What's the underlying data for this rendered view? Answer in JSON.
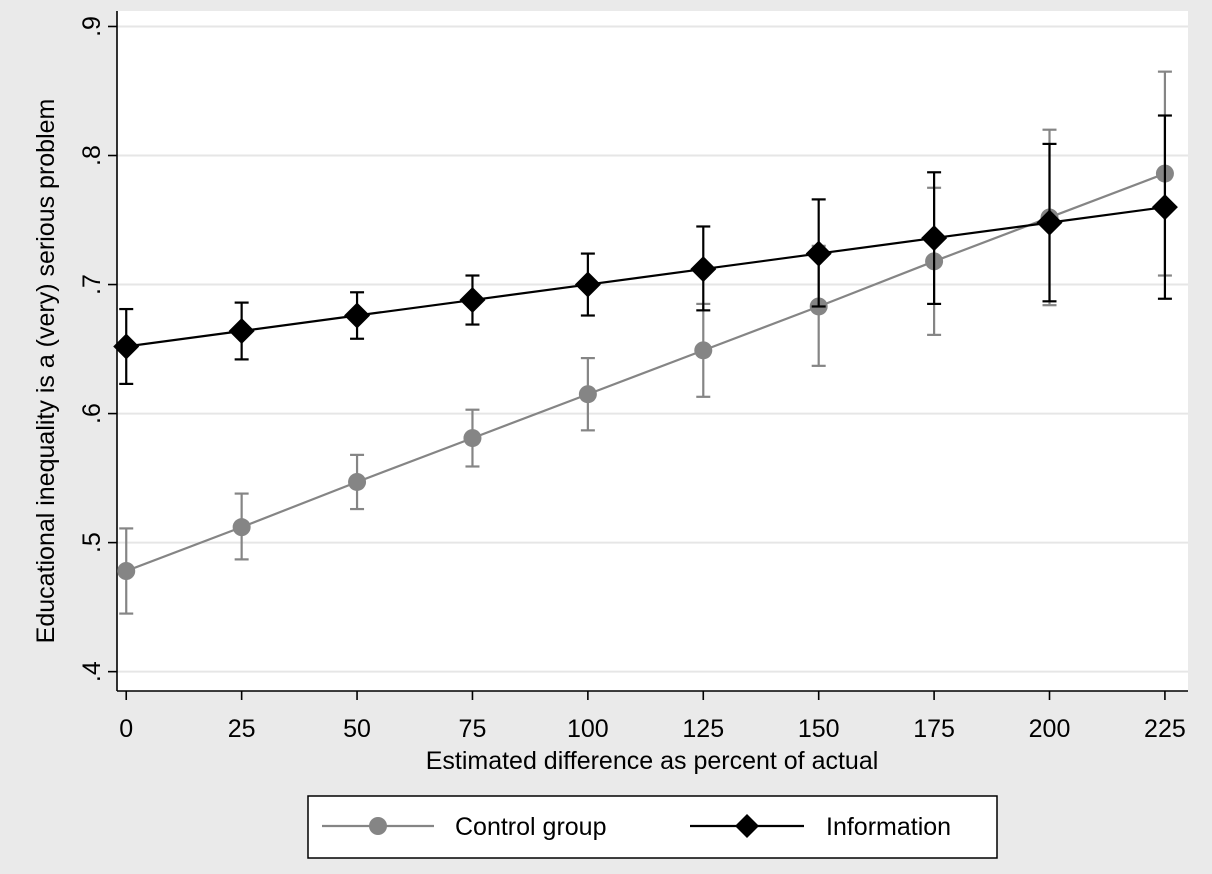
{
  "chart_data": {
    "type": "line",
    "title": "",
    "xlabel": "Estimated difference as percent of actual",
    "ylabel": "Educational inequality is a (very) serious problem",
    "x": [
      0,
      25,
      50,
      75,
      100,
      125,
      150,
      175,
      200,
      225
    ],
    "x_tick_labels": [
      "0",
      "25",
      "50",
      "75",
      "100",
      "125",
      "150",
      "175",
      "200",
      "225"
    ],
    "y_ticks": [
      0.4,
      0.5,
      0.6,
      0.7,
      0.8,
      0.9
    ],
    "y_tick_labels": [
      ".4",
      ".5",
      ".6",
      ".7",
      ".8",
      ".9"
    ],
    "xlim": [
      -2,
      230
    ],
    "ylim": [
      0.385,
      0.912
    ],
    "grid": true,
    "legend_position": "bottom",
    "series": [
      {
        "name": "Control group",
        "marker": "circle",
        "color": "#858585",
        "values": [
          0.478,
          0.512,
          0.547,
          0.581,
          0.615,
          0.649,
          0.683,
          0.718,
          0.752,
          0.786
        ],
        "ci_low": [
          0.445,
          0.487,
          0.526,
          0.559,
          0.587,
          0.613,
          0.637,
          0.661,
          0.684,
          0.707
        ],
        "ci_high": [
          0.511,
          0.538,
          0.568,
          0.603,
          0.643,
          0.685,
          0.73,
          0.775,
          0.82,
          0.865
        ]
      },
      {
        "name": "Information",
        "marker": "diamond",
        "color": "#000000",
        "values": [
          0.652,
          0.664,
          0.676,
          0.688,
          0.7,
          0.712,
          0.724,
          0.736,
          0.748,
          0.76
        ],
        "ci_low": [
          0.623,
          0.642,
          0.658,
          0.669,
          0.676,
          0.68,
          0.683,
          0.685,
          0.687,
          0.689
        ],
        "ci_high": [
          0.681,
          0.686,
          0.694,
          0.707,
          0.724,
          0.745,
          0.766,
          0.787,
          0.809,
          0.831
        ]
      }
    ]
  }
}
